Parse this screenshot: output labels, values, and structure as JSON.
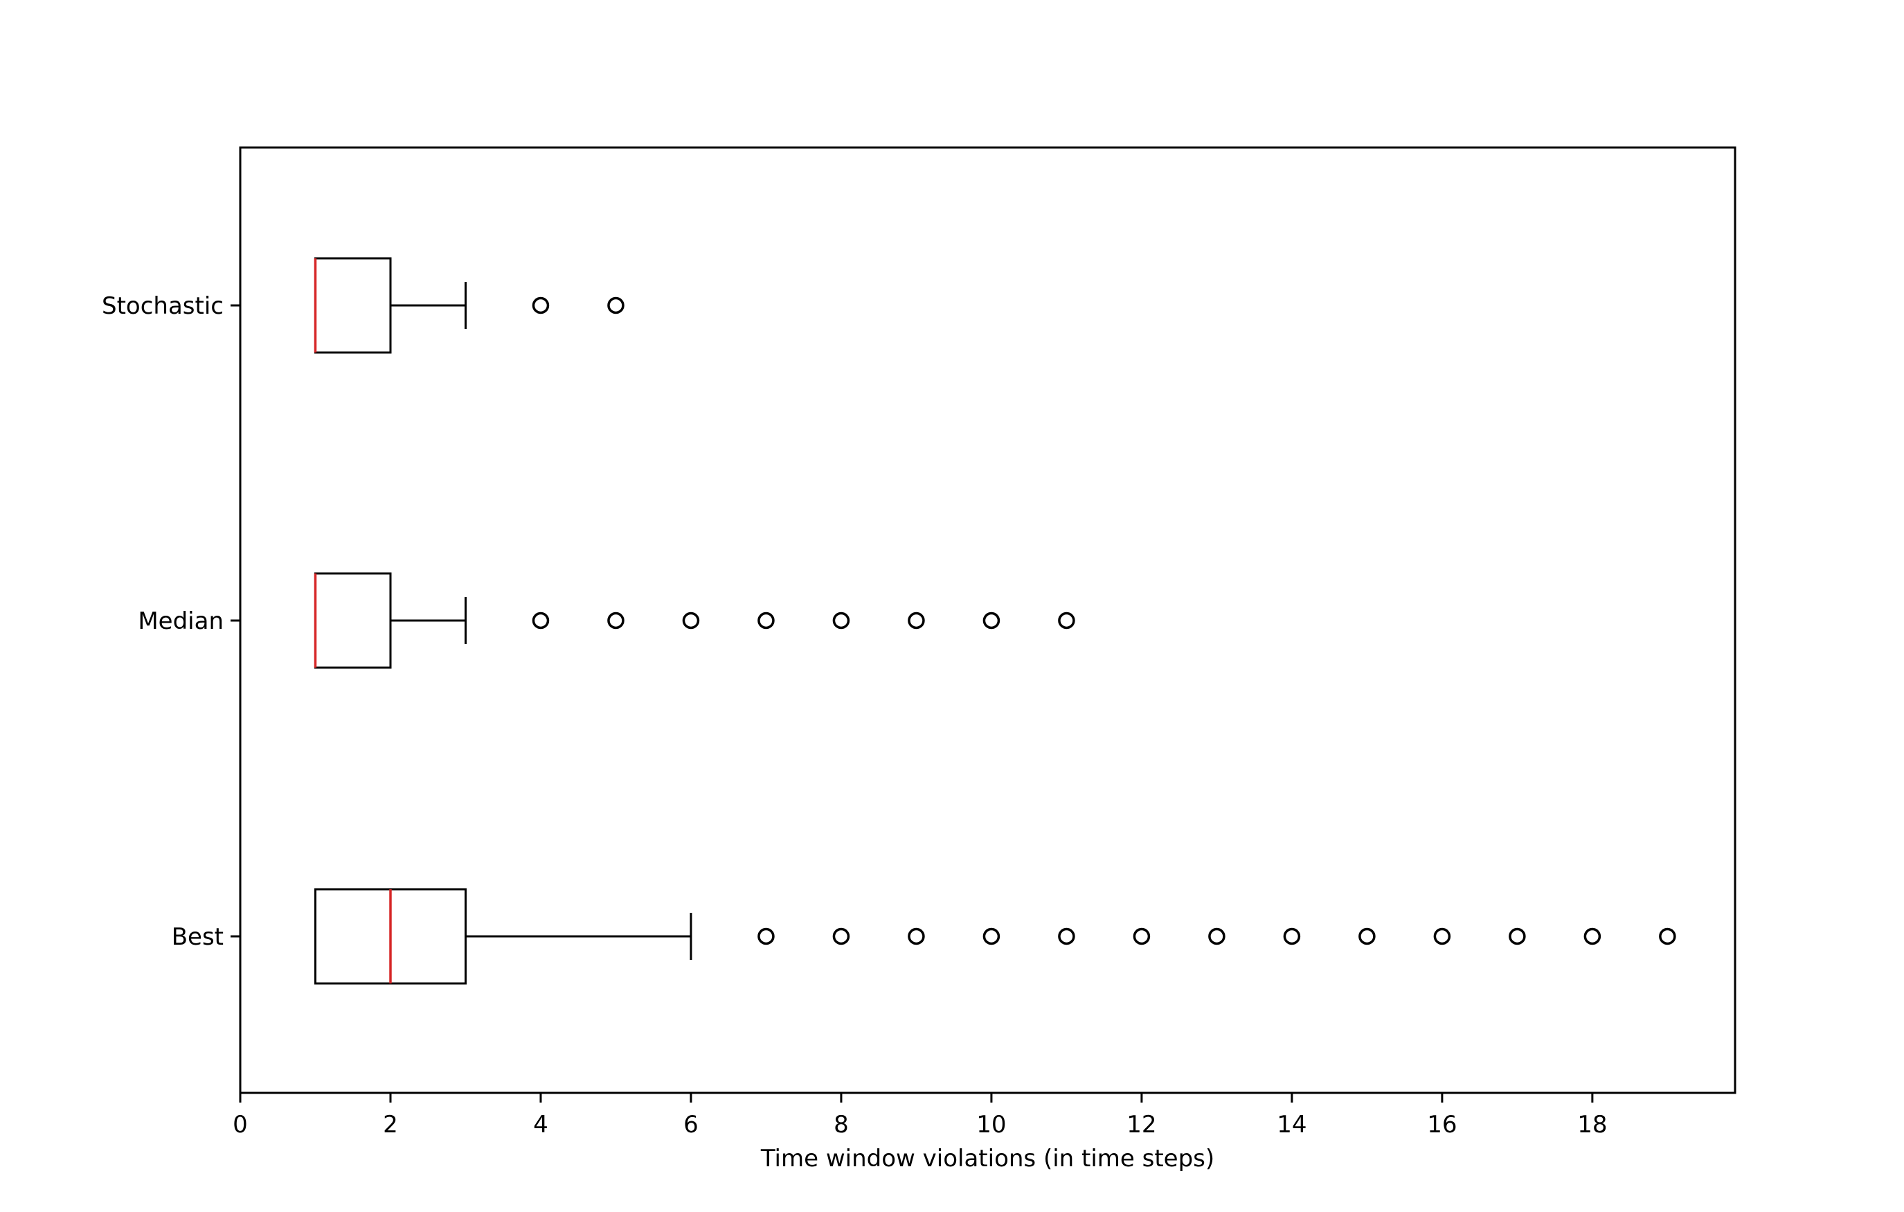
{
  "chart_data": {
    "type": "boxplot",
    "orientation": "horizontal",
    "title": "",
    "xlabel": "Time window violations (in time steps)",
    "ylabel": "",
    "xlim": [
      0,
      19.9
    ],
    "xticks": [
      0,
      2,
      4,
      6,
      8,
      10,
      12,
      14,
      16,
      18
    ],
    "xtick_labels": [
      "0",
      "2",
      "4",
      "6",
      "8",
      "10",
      "12",
      "14",
      "16",
      "18"
    ],
    "categories": [
      "Best",
      "Median",
      "Stochastic"
    ],
    "grid": false,
    "colors": {
      "box": "#000000",
      "median": "#d62728",
      "outlier": "#000000"
    },
    "boxes": [
      {
        "category": "Best",
        "whisker_low": 1,
        "q1": 1,
        "median": 2,
        "q3": 3,
        "whisker_high": 6,
        "outliers": [
          7,
          8,
          9,
          10,
          11,
          12,
          13,
          14,
          15,
          16,
          17,
          18,
          19
        ]
      },
      {
        "category": "Median",
        "whisker_low": 1,
        "q1": 1,
        "median": 1,
        "q3": 2,
        "whisker_high": 3,
        "outliers": [
          4,
          5,
          6,
          7,
          8,
          9,
          10,
          11
        ]
      },
      {
        "category": "Stochastic",
        "whisker_low": 1,
        "q1": 1,
        "median": 1,
        "q3": 2,
        "whisker_high": 3,
        "outliers": [
          4,
          5
        ]
      }
    ]
  }
}
